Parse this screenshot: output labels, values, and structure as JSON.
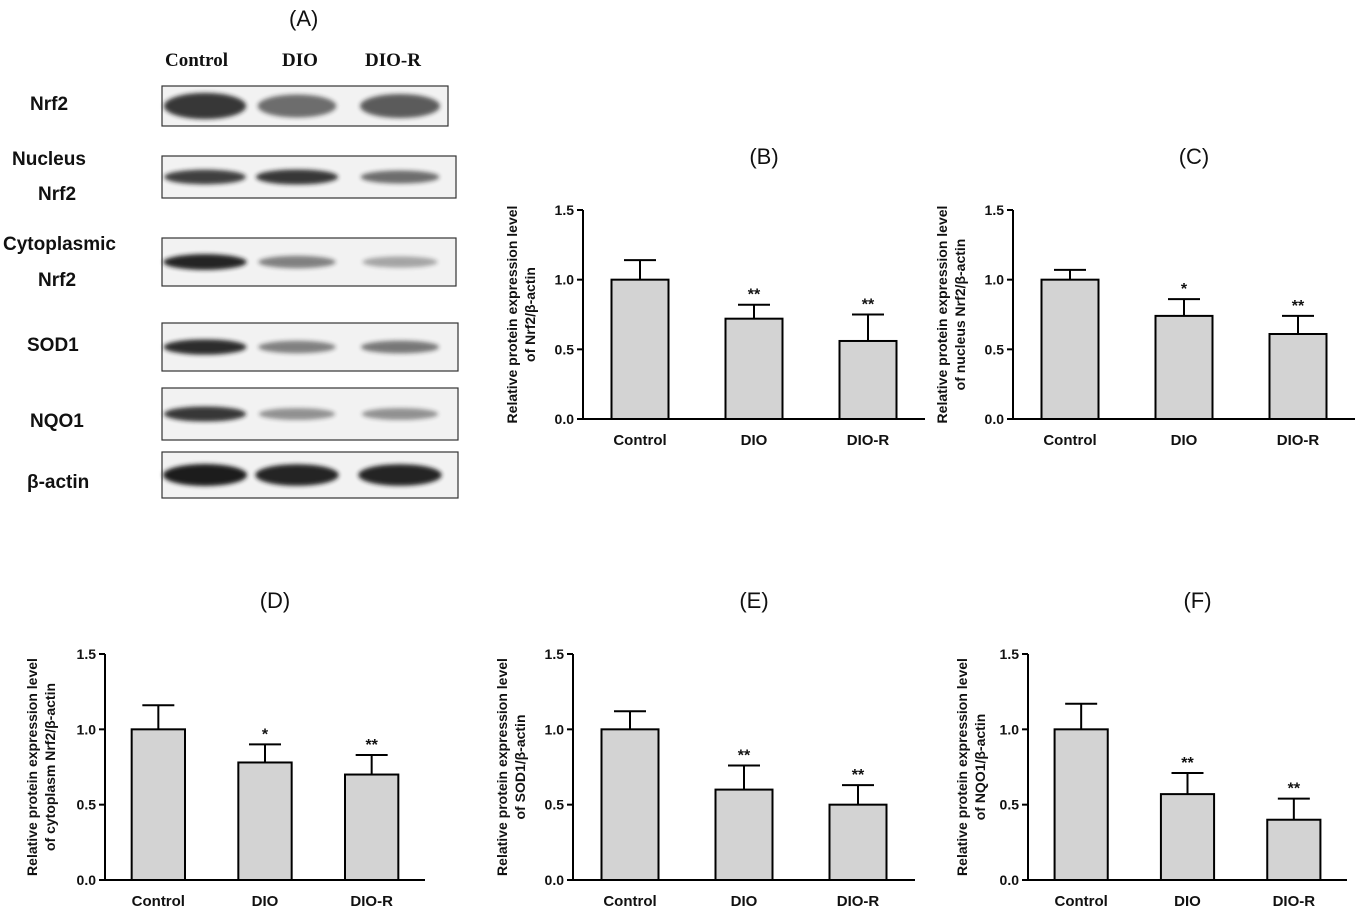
{
  "western_blot": {
    "panel_label": "(A)",
    "columns": [
      "Control",
      "DIO",
      "DIO-R"
    ],
    "rows": [
      {
        "label_lines": [
          "Nrf2"
        ],
        "intensities": [
          0.85,
          0.55,
          0.65
        ]
      },
      {
        "label_lines": [
          "Nucleus",
          "Nrf2"
        ],
        "intensities": [
          0.8,
          0.85,
          0.55
        ]
      },
      {
        "label_lines": [
          "Cytoplasmic",
          "Nrf2"
        ],
        "intensities": [
          0.95,
          0.45,
          0.25
        ]
      },
      {
        "label_lines": [
          "SOD1"
        ],
        "intensities": [
          0.9,
          0.45,
          0.5
        ]
      },
      {
        "label_lines": [
          "NQO1"
        ],
        "intensities": [
          0.85,
          0.35,
          0.35
        ]
      },
      {
        "label_lines": [
          "β-actin"
        ],
        "intensities": [
          1.0,
          0.95,
          0.95
        ]
      }
    ]
  },
  "chart_data": [
    {
      "type": "bar",
      "panel": "(B)",
      "categories": [
        "Control",
        "DIO",
        "DIO-R"
      ],
      "values": [
        1.0,
        0.72,
        0.56
      ],
      "errors": [
        0.14,
        0.1,
        0.19
      ],
      "significance": [
        "",
        "**",
        "**"
      ],
      "ylabel_lines": [
        "Relative protein expression level",
        "of Nrf2/β-actin"
      ],
      "ylim": [
        0,
        1.5
      ],
      "yticks": [
        "0.0",
        "0.5",
        "1.0",
        "1.5"
      ]
    },
    {
      "type": "bar",
      "panel": "(C)",
      "categories": [
        "Control",
        "DIO",
        "DIO-R"
      ],
      "values": [
        1.0,
        0.74,
        0.61
      ],
      "errors": [
        0.07,
        0.12,
        0.13
      ],
      "significance": [
        "",
        "*",
        "**"
      ],
      "ylabel_lines": [
        "Relative protein expression level",
        "of nucleus Nrf2/β-actin"
      ],
      "ylim": [
        0,
        1.5
      ],
      "yticks": [
        "0.0",
        "0.5",
        "1.0",
        "1.5"
      ]
    },
    {
      "type": "bar",
      "panel": "(D)",
      "categories": [
        "Control",
        "DIO",
        "DIO-R"
      ],
      "values": [
        1.0,
        0.78,
        0.7
      ],
      "errors": [
        0.16,
        0.12,
        0.13
      ],
      "significance": [
        "",
        "*",
        "**"
      ],
      "ylabel_lines": [
        "Relative protein expression level",
        "of cytoplasm Nrf2/β-actin"
      ],
      "ylim": [
        0,
        1.5
      ],
      "yticks": [
        "0.0",
        "0.5",
        "1.0",
        "1.5"
      ]
    },
    {
      "type": "bar",
      "panel": "(E)",
      "categories": [
        "Control",
        "DIO",
        "DIO-R"
      ],
      "values": [
        1.0,
        0.6,
        0.5
      ],
      "errors": [
        0.12,
        0.16,
        0.13
      ],
      "significance": [
        "",
        "**",
        "**"
      ],
      "ylabel_lines": [
        "Relative protein expression level",
        "of SOD1/β-actin"
      ],
      "ylim": [
        0,
        1.5
      ],
      "yticks": [
        "0.0",
        "0.5",
        "1.0",
        "1.5"
      ]
    },
    {
      "type": "bar",
      "panel": "(F)",
      "categories": [
        "Control",
        "DIO",
        "DIO-R"
      ],
      "values": [
        1.0,
        0.57,
        0.4
      ],
      "errors": [
        0.17,
        0.14,
        0.14
      ],
      "significance": [
        "",
        "**",
        "**"
      ],
      "ylabel_lines": [
        "Relative protein expression level",
        "of NQO1/β-actin"
      ],
      "ylim": [
        0,
        1.5
      ],
      "yticks": [
        "0.0",
        "0.5",
        "1.0",
        "1.5"
      ]
    }
  ],
  "colors": {
    "bar_fill": "#d3d3d3",
    "bar_stroke": "#000000",
    "band": "#1a1a1a"
  }
}
